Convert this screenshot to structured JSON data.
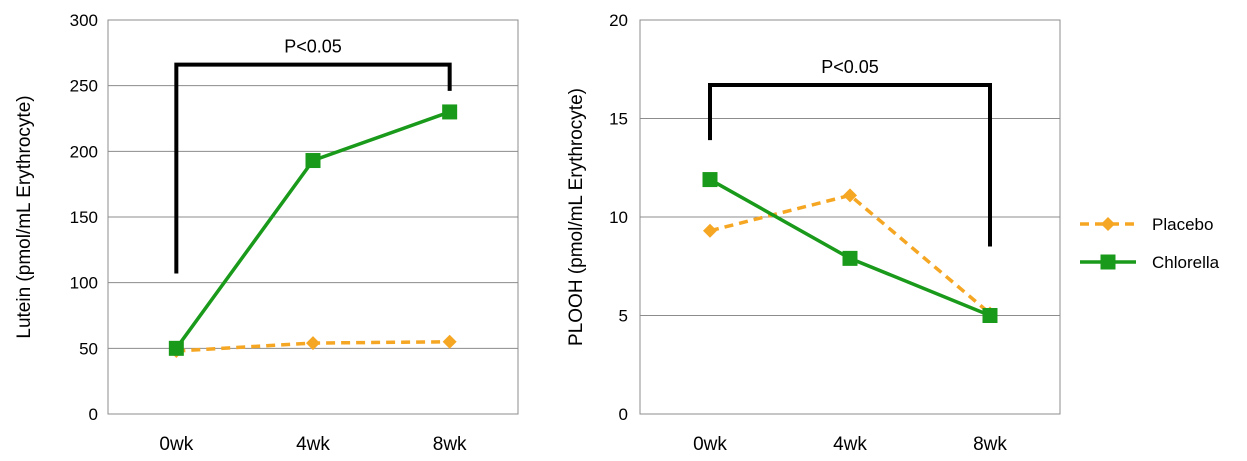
{
  "chart_data": [
    {
      "type": "line",
      "categories": [
        "0wk",
        "4wk",
        "8wk"
      ],
      "ylabel": "Lutein (pmol/mL Erythrocyte)",
      "ylim": [
        0,
        300
      ],
      "yticks": [
        0,
        50,
        100,
        150,
        200,
        250,
        300
      ],
      "grid": true,
      "series": [
        {
          "name": "Placebo",
          "values": [
            48,
            54,
            55
          ],
          "color": "#f5a623",
          "dash": true,
          "marker": "diamond"
        },
        {
          "name": "Chlorella",
          "values": [
            50,
            193,
            230
          ],
          "color": "#1a9a1a",
          "dash": false,
          "marker": "square"
        }
      ],
      "annotation": {
        "text": "P<0.05",
        "from": "0wk",
        "to": "8wk",
        "left_end": 107,
        "right_end": 246,
        "top": 266
      }
    },
    {
      "type": "line",
      "categories": [
        "0wk",
        "4wk",
        "8wk"
      ],
      "ylabel": "PLOOH (pmol/mL Erythrocyte)",
      "ylim": [
        0,
        20
      ],
      "yticks": [
        0,
        5,
        10,
        15,
        20
      ],
      "grid": true,
      "series": [
        {
          "name": "Placebo",
          "values": [
            9.3,
            11.1,
            5.1
          ],
          "color": "#f5a623",
          "dash": true,
          "marker": "diamond"
        },
        {
          "name": "Chlorella",
          "values": [
            11.9,
            7.9,
            5.0
          ],
          "color": "#1a9a1a",
          "dash": false,
          "marker": "square"
        }
      ],
      "annotation": {
        "text": "P<0.05",
        "from": "0wk",
        "to": "8wk",
        "left_end": 13.9,
        "right_end": 8.5,
        "top": 16.7
      }
    }
  ],
  "legend": {
    "placement": "right",
    "items": [
      {
        "label": "Placebo",
        "color": "#f5a623",
        "dash": true,
        "marker": "diamond"
      },
      {
        "label": "Chlorella",
        "color": "#1a9a1a",
        "dash": false,
        "marker": "square"
      }
    ]
  }
}
